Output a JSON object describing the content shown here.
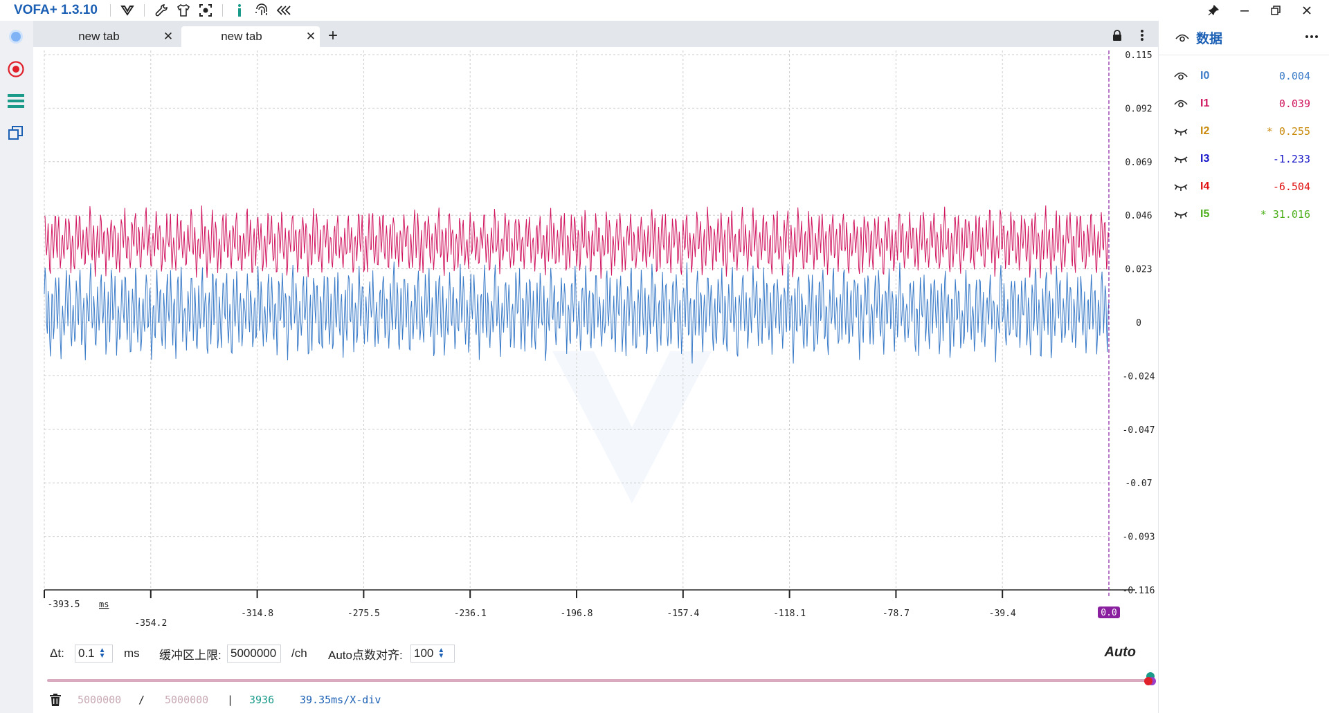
{
  "app": {
    "title": "VOFA+ 1.3.10"
  },
  "tabs": [
    {
      "label": "new tab",
      "active": false
    },
    {
      "label": "new tab",
      "active": true
    }
  ],
  "plot": {
    "y_ticks": [
      "0.115",
      "0.092",
      "0.069",
      "0.046",
      "0.023",
      "0",
      "-0.024",
      "-0.047",
      "-0.07",
      "-0.093",
      "-0.116"
    ],
    "x_ticks": [
      "-393.5",
      "-354.2",
      "-314.8",
      "-275.5",
      "-236.1",
      "-196.8",
      "-157.4",
      "-118.1",
      "-78.7",
      "-39.4"
    ],
    "x_unit": "ms",
    "x_end": "0.0",
    "grid_color": "#cccccc",
    "cursor_color": "#8a1fa0"
  },
  "chart_data": {
    "type": "line",
    "xlabel": "ms",
    "xlim": [
      -393.5,
      0.0
    ],
    "ylim": [
      -0.116,
      0.115
    ],
    "grid": true,
    "series": [
      {
        "name": "I0",
        "color": "#3a7bc8",
        "mean": 0.004,
        "amplitude": 0.022
      },
      {
        "name": "I1",
        "color": "#d0155f",
        "mean": 0.034,
        "amplitude": 0.016
      }
    ]
  },
  "controls": {
    "dt_label": "Δt:",
    "dt_value": "0.1",
    "dt_unit": "ms",
    "buffer_label": "缓冲区上限:",
    "buffer_value": "5000000",
    "buffer_unit": "/ch",
    "auto_align_label": "Auto点数对齐:",
    "auto_align_value": "100",
    "auto_button": "Auto"
  },
  "status": {
    "buffer_used": "5000000",
    "divider": "/",
    "buffer_total": "5000000",
    "sep": "|",
    "point_count": "3936",
    "time_div": "39.35ms/X-div"
  },
  "right_panel": {
    "title": "数据",
    "channels": [
      {
        "name": "I0",
        "value": "0.004",
        "color": "#3a7bc8",
        "visible": true
      },
      {
        "name": "I1",
        "value": "0.039",
        "color": "#d0155f",
        "visible": true
      },
      {
        "name": "I2",
        "value": "* 0.255",
        "color": "#c98a0c",
        "visible": false
      },
      {
        "name": "I3",
        "value": "-1.233",
        "color": "#1515c8",
        "visible": false
      },
      {
        "name": "I4",
        "value": "-6.504",
        "color": "#e01010",
        "visible": false
      },
      {
        "name": "I5",
        "value": "* 31.016",
        "color": "#4caf1a",
        "visible": false
      }
    ]
  }
}
